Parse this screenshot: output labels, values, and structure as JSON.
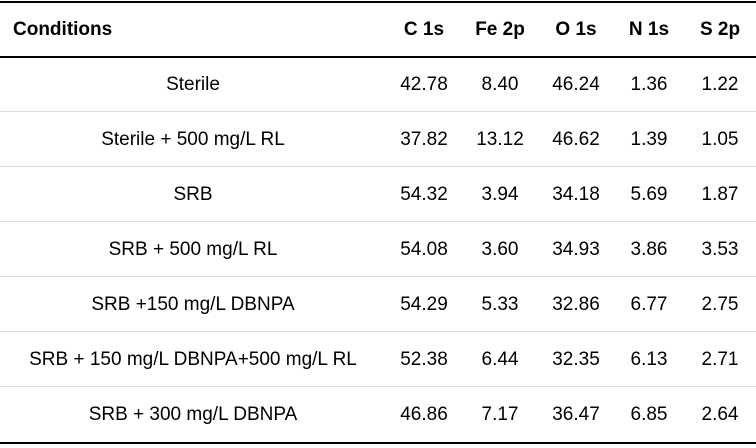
{
  "table": {
    "headers": [
      "Conditions",
      "C 1s",
      "Fe 2p",
      "O 1s",
      "N 1s",
      "S 2p"
    ],
    "rows": [
      [
        "Sterile",
        "42.78",
        "8.40",
        "46.24",
        "1.36",
        "1.22"
      ],
      [
        "Sterile + 500 mg/L RL",
        "37.82",
        "13.12",
        "46.62",
        "1.39",
        "1.05"
      ],
      [
        "SRB",
        "54.32",
        "3.94",
        "34.18",
        "5.69",
        "1.87"
      ],
      [
        "SRB + 500 mg/L RL",
        "54.08",
        "3.60",
        "34.93",
        "3.86",
        "3.53"
      ],
      [
        "SRB +150 mg/L DBNPA",
        "54.29",
        "5.33",
        "32.86",
        "6.77",
        "2.75"
      ],
      [
        "SRB + 150 mg/L DBNPA+500 mg/L RL",
        "52.38",
        "6.44",
        "32.35",
        "6.13",
        "2.71"
      ],
      [
        "SRB + 300 mg/L DBNPA",
        "46.86",
        "7.17",
        "36.47",
        "6.85",
        "2.64"
      ]
    ]
  }
}
